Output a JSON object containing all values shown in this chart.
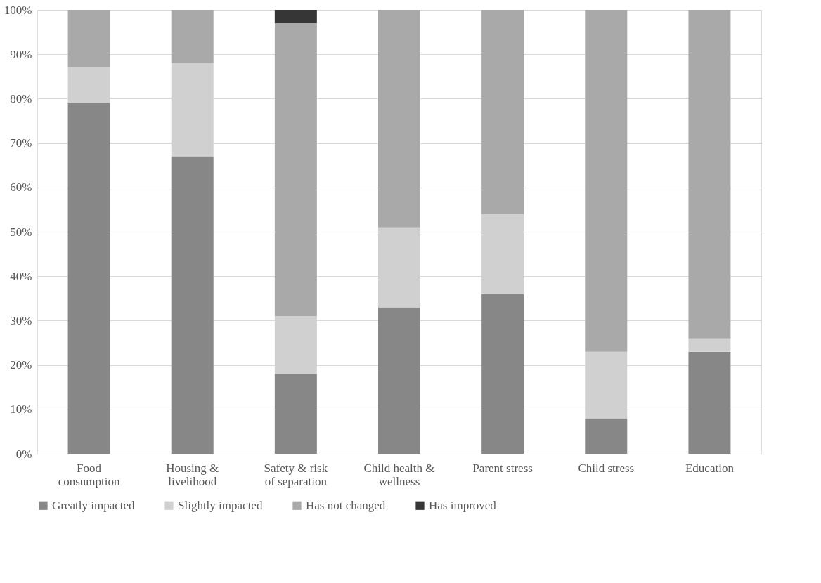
{
  "chart_data": {
    "type": "bar",
    "stacked": true,
    "categories": [
      "Food consumption",
      "Housing & livelihood",
      "Safety & risk of separation",
      "Child health & wellness",
      "Parent stress",
      "Child stress",
      "Education"
    ],
    "series": [
      {
        "name": "Greatly impacted",
        "color": "#878787",
        "values": [
          79,
          67,
          18,
          33,
          36,
          8,
          23
        ]
      },
      {
        "name": "Slightly impacted",
        "color": "#d0d0d0",
        "values": [
          8,
          21,
          13,
          18,
          18,
          15,
          3
        ]
      },
      {
        "name": "Has not changed",
        "color": "#a9a9a9",
        "values": [
          13,
          12,
          66,
          49,
          46,
          77,
          74
        ]
      },
      {
        "name": "Has improved",
        "color": "#363636",
        "values": [
          0,
          0,
          3,
          0,
          0,
          0,
          0
        ]
      }
    ],
    "ylim": [
      0,
      100
    ],
    "yticks": [
      {
        "value": 0,
        "label": "0%"
      },
      {
        "value": 10,
        "label": "10%"
      },
      {
        "value": 20,
        "label": "20%"
      },
      {
        "value": 30,
        "label": "30%"
      },
      {
        "value": 40,
        "label": "40%"
      },
      {
        "value": 50,
        "label": "50%"
      },
      {
        "value": 60,
        "label": "60%"
      },
      {
        "value": 70,
        "label": "70%"
      },
      {
        "value": 80,
        "label": "80%"
      },
      {
        "value": 90,
        "label": "90%"
      },
      {
        "value": 100,
        "label": "100%"
      }
    ],
    "grid": "y",
    "legend": "bottom"
  }
}
